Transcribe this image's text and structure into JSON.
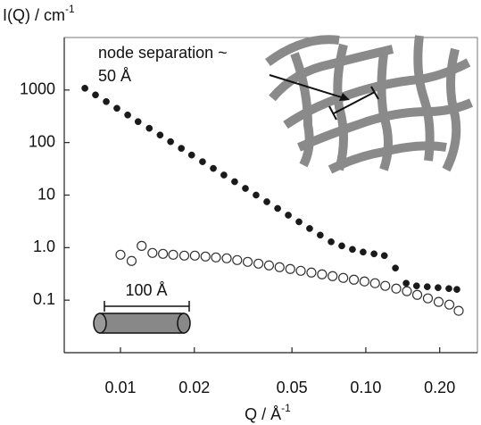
{
  "chart_data": {
    "type": "scatter",
    "ylabel": {
      "text": "I(Q) / cm",
      "sup": "-1"
    },
    "xlabel": {
      "text": "Q / Å",
      "sup": "-1"
    },
    "annotations": [
      "node separation ~",
      "50 Å",
      "100 Å"
    ],
    "log_x": true,
    "log_y": true,
    "xlim": [
      0.0059,
      0.285
    ],
    "ylim": [
      0.01,
      10000
    ],
    "xticks": [
      0.01,
      0.02,
      0.05,
      {
        "value": 0.1,
        "label": "0.10"
      },
      {
        "value": 0.2,
        "label": "0.20"
      }
    ],
    "yticks": [
      {
        "value": 0.1,
        "label": "0.1"
      },
      {
        "value": 1,
        "label": "1.0"
      },
      10,
      100,
      1000
    ],
    "series": [
      {
        "color": "#1a1a1a",
        "marker": "filled",
        "x": [
          0.00716,
          0.00791,
          0.00875,
          0.00967,
          0.0107,
          0.0118,
          0.0131,
          0.0145,
          0.016,
          0.0177,
          0.0195,
          0.0216,
          0.0239,
          0.0264,
          0.0292,
          0.0323,
          0.0357,
          0.0395,
          0.0437,
          0.0483,
          0.0534,
          0.059,
          0.0652,
          0.0722,
          0.0798,
          0.0882,
          0.0975,
          0.108,
          0.119,
          0.132,
          0.146,
          0.161,
          0.178,
          0.197,
          0.218,
          0.235
        ],
        "values": [
          1081,
          807,
          602,
          449,
          335,
          250,
          187,
          139,
          104,
          77.6,
          57.9,
          43.2,
          32.2,
          24.1,
          18.0,
          13.4,
          10,
          7.46,
          5.57,
          4.15,
          3.1,
          2.31,
          1.73,
          1.29,
          1.08,
          0.925,
          0.823,
          0.761,
          0.704,
          0.408,
          0.21,
          0.187,
          0.18,
          0.173,
          0.166,
          0.16
        ]
      },
      {
        "color": "#333333",
        "marker": "open",
        "x": [
          0.01,
          0.0111,
          0.0122,
          0.0135,
          0.0149,
          0.0164,
          0.0182,
          0.0201,
          0.0222,
          0.0245,
          0.0271,
          0.0299,
          0.033,
          0.0365,
          0.0403,
          0.0445,
          0.0492,
          0.0543,
          0.06,
          0.0663,
          0.0732,
          0.0809,
          0.0894,
          0.0987,
          0.109,
          0.12,
          0.133,
          0.147,
          0.162,
          0.179,
          0.198,
          0.219,
          0.239
        ],
        "values": [
          0.732,
          0.557,
          1.08,
          0.791,
          0.761,
          0.732,
          0.704,
          0.704,
          0.677,
          0.651,
          0.626,
          0.579,
          0.535,
          0.495,
          0.458,
          0.424,
          0.392,
          0.362,
          0.335,
          0.31,
          0.287,
          0.265,
          0.245,
          0.227,
          0.21,
          0.187,
          0.166,
          0.148,
          0.126,
          0.108,
          0.0925,
          0.0822,
          0.0627
        ]
      }
    ]
  }
}
